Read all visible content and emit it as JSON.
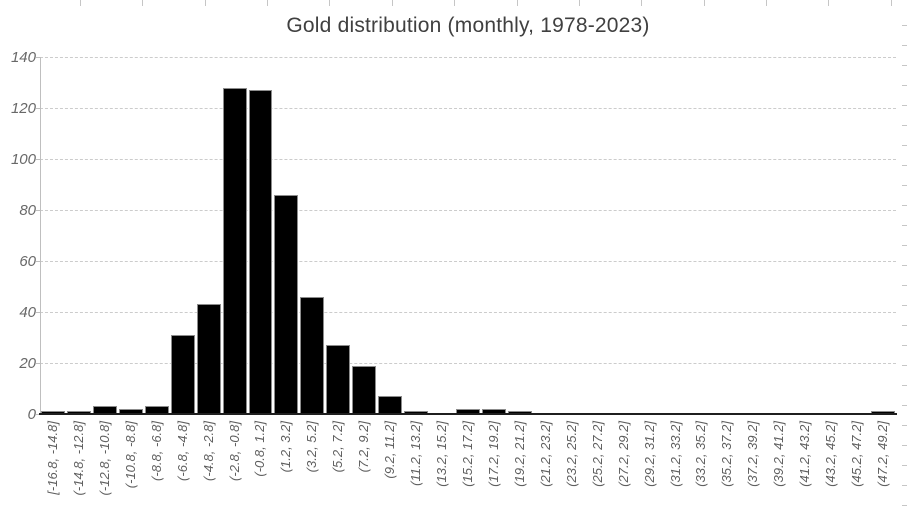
{
  "title": "Gold distribution (monthly, 1978-2023)",
  "chart_data": {
    "type": "bar",
    "subtype": "histogram",
    "title": "Gold distribution (monthly, 1978-2023)",
    "xlabel": "",
    "ylabel": "",
    "ylim": [
      0,
      140
    ],
    "yticks": [
      0,
      20,
      40,
      60,
      80,
      100,
      120,
      140
    ],
    "grid": true,
    "legend": false,
    "bar_color": "#000000",
    "title_color": "#404040",
    "axis_label_color": "#686868",
    "categories": [
      "[-16.8, -14.8]",
      "(-14.8, -12.8]",
      "(-12.8, -10.8]",
      "(-10.8, -8.8]",
      "(-8.8, -6.8]",
      "(-6.8, -4.8]",
      "(-4.8, -2.8]",
      "(-2.8, -0.8]",
      "(-0.8, 1.2]",
      "(1.2, 3.2]",
      "(3.2, 5.2]",
      "(5.2, 7.2]",
      "(7.2, 9.2]",
      "(9.2, 11.2]",
      "(11.2, 13.2]",
      "(13.2, 15.2]",
      "(15.2, 17.2]",
      "(17.2, 19.2]",
      "(19.2, 21.2]",
      "(21.2, 23.2]",
      "(23.2, 25.2]",
      "(25.2, 27.2]",
      "(27.2, 29.2]",
      "(29.2, 31.2]",
      "(31.2, 33.2]",
      "(33.2, 35.2]",
      "(35.2, 37.2]",
      "(37.2, 39.2]",
      "(39.2, 41.2]",
      "(41.2, 43.2]",
      "(43.2, 45.2]",
      "(45.2, 47.2]",
      "(47.2, 49.2]"
    ],
    "values": [
      1,
      1,
      3,
      2,
      3,
      31,
      43,
      128,
      127,
      86,
      46,
      27,
      19,
      7,
      1,
      0,
      2,
      2,
      1,
      0,
      0,
      0,
      0,
      0,
      0,
      0,
      0,
      0,
      0,
      0,
      0,
      0,
      1
    ]
  }
}
